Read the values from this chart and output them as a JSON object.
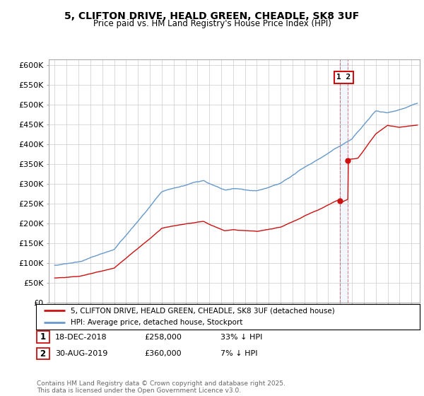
{
  "title": "5, CLIFTON DRIVE, HEALD GREEN, CHEADLE, SK8 3UF",
  "subtitle": "Price paid vs. HM Land Registry's House Price Index (HPI)",
  "ylabel_ticks": [
    "£0",
    "£50K",
    "£100K",
    "£150K",
    "£200K",
    "£250K",
    "£300K",
    "£350K",
    "£400K",
    "£450K",
    "£500K",
    "£550K",
    "£600K"
  ],
  "ytick_values": [
    0,
    50000,
    100000,
    150000,
    200000,
    250000,
    300000,
    350000,
    400000,
    450000,
    500000,
    550000,
    600000
  ],
  "ylim": [
    0,
    615000
  ],
  "xlim_start": 1994.5,
  "xlim_end": 2025.7,
  "xticks": [
    1995,
    1996,
    1997,
    1998,
    1999,
    2000,
    2001,
    2002,
    2003,
    2004,
    2005,
    2006,
    2007,
    2008,
    2009,
    2010,
    2011,
    2012,
    2013,
    2014,
    2015,
    2016,
    2017,
    2018,
    2019,
    2020,
    2021,
    2022,
    2023,
    2024,
    2025
  ],
  "hpi_color": "#6699cc",
  "price_color": "#cc1111",
  "sale1_x": 2018.96,
  "sale1_y": 258000,
  "sale2_x": 2019.66,
  "sale2_y": 360000,
  "legend_label1": "5, CLIFTON DRIVE, HEALD GREEN, CHEADLE, SK8 3UF (detached house)",
  "legend_label2": "HPI: Average price, detached house, Stockport",
  "table_row1": [
    "1",
    "18-DEC-2018",
    "£258,000",
    "33% ↓ HPI"
  ],
  "table_row2": [
    "2",
    "30-AUG-2019",
    "£360,000",
    "7% ↓ HPI"
  ],
  "footnote": "Contains HM Land Registry data © Crown copyright and database right 2025.\nThis data is licensed under the Open Government Licence v3.0.",
  "background_color": "#ffffff",
  "grid_color": "#cccccc"
}
